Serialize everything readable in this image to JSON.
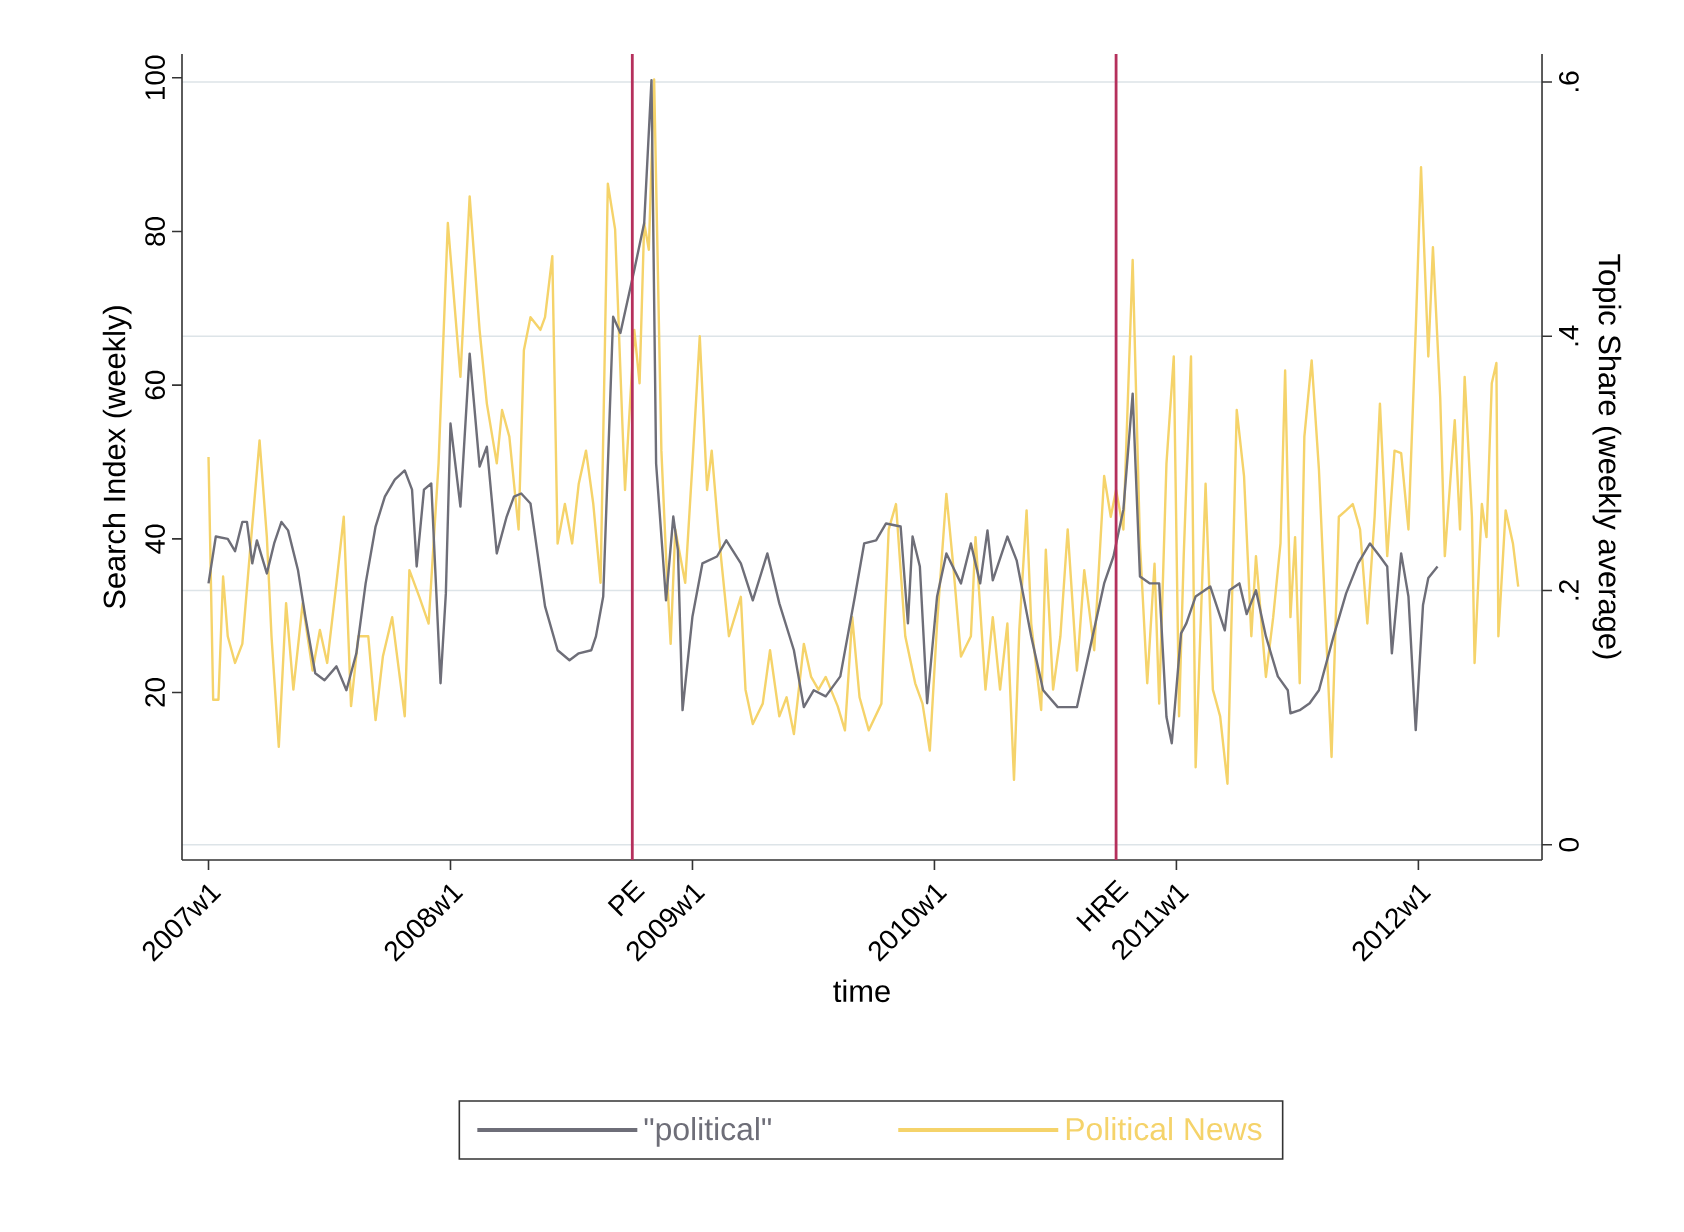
{
  "chart_data": {
    "type": "line",
    "xlabel": "time",
    "ylabel": "Search Index (weekly)",
    "y2label": "Topic Share (weekly average)",
    "xlim": [
      "2006-11-22",
      "2012-07-06"
    ],
    "xticks": [
      {
        "value": "2007-01-01",
        "label": "2007w1"
      },
      {
        "value": "2008-01-01",
        "label": "2008w1"
      },
      {
        "value": "2009-01-01",
        "label": "2009w1"
      },
      {
        "value": "2010-01-01",
        "label": "2010w1"
      },
      {
        "value": "2011-01-01",
        "label": "2011w1"
      },
      {
        "value": "2012-01-01",
        "label": "2012w1"
      }
    ],
    "ylim": [
      -1.8,
      103.1
    ],
    "yticks": [
      20,
      40,
      60,
      80,
      100
    ],
    "y2lim": [
      -0.012,
      0.622
    ],
    "y2ticks": [
      0,
      {
        "value": 0.2,
        "label": ".2"
      },
      {
        "value": 0.4,
        "label": ".4"
      },
      {
        "value": 0.6,
        "label": ".6"
      }
    ],
    "grid": "y",
    "legend": "bottom",
    "line_style": "solid",
    "ref_lines": [
      {
        "axis": "x",
        "value": "2008-10-02",
        "label": "PE",
        "color": "#b5305c"
      },
      {
        "axis": "x",
        "value": "2010-10-02",
        "label": "HRE",
        "color": "#b5305c"
      }
    ],
    "series": [
      {
        "name": "\"political\"",
        "color": "#6e6e78",
        "x": [
          "2007-01-01",
          "2007-01-12",
          "2007-01-30",
          "2007-02-10",
          "2007-02-21",
          "2007-02-28",
          "2007-03-08",
          "2007-03-15",
          "2007-03-30",
          "2007-04-10",
          "2007-04-21",
          "2007-05-01",
          "2007-05-16",
          "2007-05-27",
          "2007-06-11",
          "2007-06-25",
          "2007-07-13",
          "2007-07-28",
          "2007-08-12",
          "2007-08-26",
          "2007-09-10",
          "2007-09-24",
          "2007-10-09",
          "2007-10-24",
          "2007-11-04",
          "2007-11-11",
          "2007-11-22",
          "2007-12-03",
          "2007-12-17",
          "2007-12-25",
          "2008-01-01",
          "2008-01-16",
          "2008-01-30",
          "2008-02-14",
          "2008-02-25",
          "2008-03-11",
          "2008-03-26",
          "2008-04-06",
          "2008-04-17",
          "2008-05-01",
          "2008-05-23",
          "2008-06-11",
          "2008-06-29",
          "2008-07-13",
          "2008-08-01",
          "2008-08-08",
          "2008-08-19",
          "2008-09-03",
          "2008-09-14",
          "2008-10-05",
          "2008-10-20",
          "2008-10-31",
          "2008-11-07",
          "2008-11-22",
          "2008-12-03",
          "2008-12-10",
          "2008-12-17",
          "2009-01-01",
          "2009-01-16",
          "2009-02-07",
          "2009-02-21",
          "2009-03-15",
          "2009-04-02",
          "2009-04-24",
          "2009-05-12",
          "2009-06-03",
          "2009-06-18",
          "2009-07-03",
          "2009-07-21",
          "2009-08-12",
          "2009-09-03",
          "2009-09-17",
          "2009-10-05",
          "2009-10-20",
          "2009-11-11",
          "2009-11-22",
          "2009-11-29",
          "2009-12-10",
          "2009-12-21",
          "2010-01-05",
          "2010-01-19",
          "2010-02-10",
          "2010-02-25",
          "2010-03-11",
          "2010-03-22",
          "2010-03-30",
          "2010-04-21",
          "2010-05-05",
          "2010-05-27",
          "2010-06-14",
          "2010-07-06",
          "2010-08-04",
          "2010-08-23",
          "2010-09-14",
          "2010-09-28",
          "2010-10-13",
          "2010-10-27",
          "2010-11-07",
          "2010-11-22",
          "2010-12-06",
          "2010-12-17",
          "2010-12-25",
          "2011-01-08",
          "2011-01-16",
          "2011-01-30",
          "2011-02-21",
          "2011-03-15",
          "2011-03-22",
          "2011-04-06",
          "2011-04-17",
          "2011-05-01",
          "2011-05-16",
          "2011-06-03",
          "2011-06-18",
          "2011-06-22",
          "2011-07-06",
          "2011-07-21",
          "2011-08-04",
          "2011-08-26",
          "2011-09-14",
          "2011-10-02",
          "2011-10-20",
          "2011-11-04",
          "2011-11-15",
          "2011-11-22",
          "2011-12-06",
          "2011-12-17",
          "2011-12-28",
          "2012-01-08",
          "2012-01-16",
          "2012-01-30"
        ],
        "values": [
          34.2,
          40.3,
          40,
          38.4,
          42.2,
          42.2,
          36.8,
          39.8,
          35.5,
          39.4,
          42.2,
          41.1,
          35.9,
          29.9,
          22.5,
          21.6,
          23.4,
          20.3,
          25.1,
          34.2,
          41.6,
          45.5,
          47.7,
          48.9,
          46.4,
          36.4,
          46.4,
          47.2,
          21.2,
          32.9,
          55,
          44.2,
          64.1,
          49.4,
          52,
          38.1,
          42.9,
          45.5,
          45.9,
          44.6,
          31.2,
          25.5,
          24.2,
          25.1,
          25.5,
          27.3,
          32.5,
          68.9,
          66.8,
          75,
          81.1,
          99.7,
          49.8,
          32,
          42.9,
          38.5,
          17.7,
          29.9,
          36.8,
          37.7,
          39.8,
          36.8,
          32,
          38.1,
          31.6,
          25.5,
          18.1,
          20.3,
          19.5,
          22.1,
          32.5,
          39.4,
          39.8,
          42,
          41.6,
          29,
          40.3,
          36.4,
          18.6,
          32.5,
          38.1,
          34.2,
          39.4,
          34.2,
          41.1,
          34.6,
          40.3,
          37.2,
          27.3,
          20.3,
          18.1,
          18.1,
          25.5,
          34.2,
          37.7,
          43.8,
          58.9,
          35.1,
          34.2,
          34.2,
          16.8,
          13.4,
          27.7,
          29,
          32.5,
          33.8,
          28.1,
          33.3,
          34.2,
          30.2,
          33.3,
          27.3,
          22.1,
          20.3,
          17.3,
          17.7,
          18.6,
          20.3,
          27.3,
          32.9,
          36.8,
          39.4,
          37.7,
          36.4,
          25.1,
          38.1,
          32.5,
          15.1,
          31.4,
          34.9,
          36.4
        ]
      },
      {
        "name": "Political News",
        "color": "#f5d36a",
        "axis": "y2",
        "x": [
          "2007-01-01",
          "2007-01-08",
          "2007-01-16",
          "2007-01-23",
          "2007-01-30",
          "2007-02-10",
          "2007-02-21",
          "2007-03-04",
          "2007-03-19",
          "2007-03-30",
          "2007-04-06",
          "2007-04-17",
          "2007-04-28",
          "2007-05-09",
          "2007-05-23",
          "2007-06-07",
          "2007-06-18",
          "2007-06-29",
          "2007-07-13",
          "2007-07-24",
          "2007-08-04",
          "2007-08-15",
          "2007-08-30",
          "2007-09-10",
          "2007-09-21",
          "2007-10-05",
          "2007-10-24",
          "2007-10-31",
          "2007-11-15",
          "2007-11-29",
          "2007-12-14",
          "2007-12-28",
          "2008-01-16",
          "2008-01-30",
          "2008-02-14",
          "2008-02-25",
          "2008-03-11",
          "2008-03-19",
          "2008-03-30",
          "2008-04-13",
          "2008-04-21",
          "2008-05-01",
          "2008-05-16",
          "2008-05-23",
          "2008-06-03",
          "2008-06-11",
          "2008-06-22",
          "2008-07-03",
          "2008-07-13",
          "2008-07-24",
          "2008-08-04",
          "2008-08-15",
          "2008-08-26",
          "2008-09-06",
          "2008-09-17",
          "2008-09-21",
          "2008-10-05",
          "2008-10-13",
          "2008-10-20",
          "2008-10-27",
          "2008-11-04",
          "2008-11-15",
          "2008-11-22",
          "2008-11-29",
          "2008-12-06",
          "2008-12-21",
          "2009-01-01",
          "2009-01-12",
          "2009-01-23",
          "2009-01-30",
          "2009-02-10",
          "2009-02-25",
          "2009-03-15",
          "2009-03-22",
          "2009-04-02",
          "2009-04-17",
          "2009-04-28",
          "2009-05-12",
          "2009-05-23",
          "2009-06-03",
          "2009-06-18",
          "2009-06-29",
          "2009-07-10",
          "2009-07-21",
          "2009-08-08",
          "2009-08-19",
          "2009-08-30",
          "2009-09-10",
          "2009-09-24",
          "2009-10-13",
          "2009-10-24",
          "2009-11-04",
          "2009-11-18",
          "2009-12-03",
          "2009-12-14",
          "2009-12-25",
          "2010-01-05",
          "2010-01-19",
          "2010-01-30",
          "2010-02-10",
          "2010-02-25",
          "2010-03-04",
          "2010-03-19",
          "2010-03-30",
          "2010-04-10",
          "2010-04-21",
          "2010-05-01",
          "2010-05-09",
          "2010-05-20",
          "2010-05-27",
          "2010-06-11",
          "2010-06-18",
          "2010-06-29",
          "2010-07-10",
          "2010-07-21",
          "2010-08-04",
          "2010-08-15",
          "2010-08-30",
          "2010-09-14",
          "2010-09-24",
          "2010-10-02",
          "2010-10-13",
          "2010-10-27",
          "2010-11-07",
          "2010-11-18",
          "2010-11-29",
          "2010-12-06",
          "2010-12-17",
          "2010-12-28",
          "2011-01-05",
          "2011-01-12",
          "2011-01-23",
          "2011-01-30",
          "2011-02-14",
          "2011-02-25",
          "2011-03-08",
          "2011-03-19",
          "2011-04-02",
          "2011-04-13",
          "2011-04-24",
          "2011-05-01",
          "2011-05-16",
          "2011-05-27",
          "2011-06-07",
          "2011-06-14",
          "2011-06-22",
          "2011-06-29",
          "2011-07-06",
          "2011-07-13",
          "2011-07-24",
          "2011-08-04",
          "2011-08-23",
          "2011-09-03",
          "2011-09-14",
          "2011-09-24",
          "2011-10-05",
          "2011-10-16",
          "2011-10-27",
          "2011-11-04",
          "2011-11-15",
          "2011-11-26",
          "2011-12-06",
          "2011-12-17",
          "2011-12-28",
          "2012-01-05",
          "2012-01-16",
          "2012-01-23",
          "2012-02-03",
          "2012-02-10",
          "2012-02-25",
          "2012-03-04",
          "2012-03-11",
          "2012-03-22",
          "2012-03-26",
          "2012-04-06",
          "2012-04-13",
          "2012-04-21",
          "2012-04-28",
          "2012-05-01",
          "2012-05-12",
          "2012-05-23",
          "2012-05-31"
        ],
        "values": [
          0.305,
          0.114,
          0.114,
          0.211,
          0.164,
          0.143,
          0.158,
          0.227,
          0.318,
          0.242,
          0.164,
          0.077,
          0.19,
          0.122,
          0.19,
          0.137,
          0.169,
          0.143,
          0.206,
          0.258,
          0.109,
          0.164,
          0.164,
          0.098,
          0.148,
          0.179,
          0.101,
          0.216,
          0.195,
          0.174,
          0.3,
          0.489,
          0.368,
          0.51,
          0.405,
          0.347,
          0.3,
          0.342,
          0.321,
          0.248,
          0.389,
          0.415,
          0.405,
          0.415,
          0.463,
          0.237,
          0.268,
          0.237,
          0.284,
          0.31,
          0.268,
          0.206,
          0.52,
          0.484,
          0.331,
          0.279,
          0.405,
          0.363,
          0.489,
          0.468,
          0.602,
          0.31,
          0.227,
          0.158,
          0.248,
          0.206,
          0.3,
          0.4,
          0.279,
          0.31,
          0.242,
          0.164,
          0.195,
          0.122,
          0.095,
          0.111,
          0.153,
          0.101,
          0.116,
          0.087,
          0.158,
          0.132,
          0.122,
          0.132,
          0.109,
          0.09,
          0.179,
          0.116,
          0.09,
          0.111,
          0.248,
          0.268,
          0.164,
          0.127,
          0.111,
          0.074,
          0.174,
          0.276,
          0.216,
          0.148,
          0.164,
          0.242,
          0.122,
          0.179,
          0.122,
          0.174,
          0.051,
          0.169,
          0.263,
          0.174,
          0.106,
          0.232,
          0.122,
          0.164,
          0.248,
          0.137,
          0.216,
          0.153,
          0.29,
          0.258,
          0.279,
          0.248,
          0.46,
          0.237,
          0.127,
          0.221,
          0.111,
          0.3,
          0.384,
          0.101,
          0.227,
          0.384,
          0.061,
          0.284,
          0.122,
          0.101,
          0.048,
          0.342,
          0.29,
          0.164,
          0.227,
          0.132,
          0.179,
          0.237,
          0.373,
          0.179,
          0.242,
          0.127,
          0.321,
          0.381,
          0.295,
          0.069,
          0.258,
          0.263,
          0.268,
          0.248,
          0.174,
          0.258,
          0.347,
          0.227,
          0.31,
          0.308,
          0.248,
          0.405,
          0.533,
          0.384,
          0.47,
          0.352,
          0.227,
          0.334,
          0.248,
          0.368,
          0.258,
          0.143,
          0.268,
          0.242,
          0.363,
          0.379,
          0.164,
          0.263,
          0.237,
          0.203
        ]
      }
    ]
  }
}
